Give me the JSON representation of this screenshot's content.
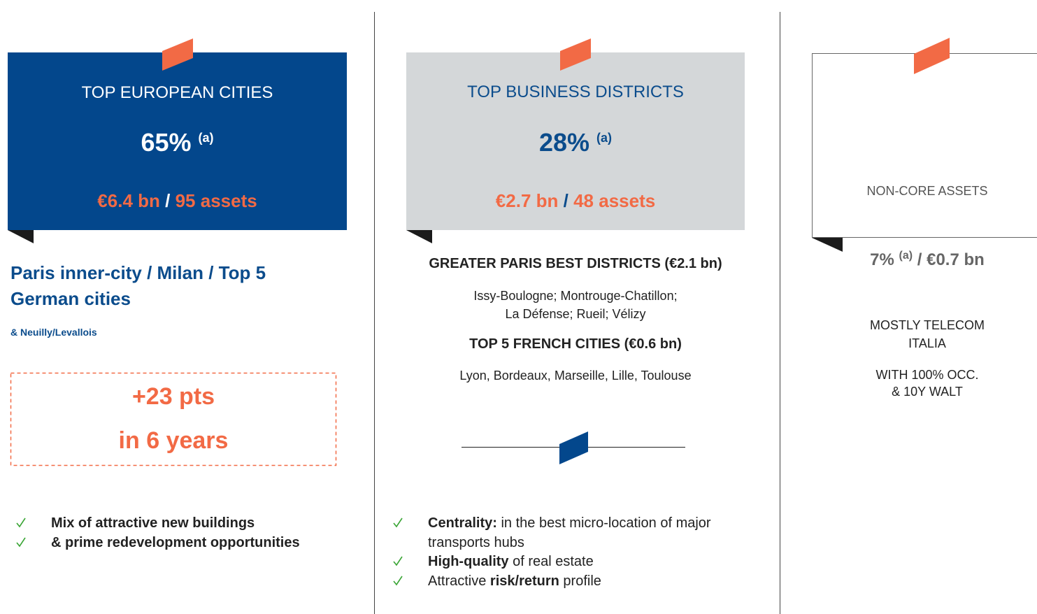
{
  "columns": [
    {
      "header": "TOP EUROPEAN CITIES",
      "share": "65%",
      "note": "(a)",
      "amount": "€6.4 bn",
      "separator": "/",
      "assets": "95 assets",
      "subtitle": "Paris inner-city / Milan / Top 5 German cities",
      "subnote": "& Neuilly/Levallois",
      "highlight": [
        "+23 pts",
        "in 6 years"
      ],
      "bullets": [
        [
          {
            "text": "Mix of attractive new buildings",
            "bold": true
          }
        ],
        [
          {
            "text": "& prime redevelopment opportunities",
            "bold": true
          }
        ]
      ]
    },
    {
      "header": "TOP BUSINESS DISTRICTS",
      "share": "28%",
      "note": "(a)",
      "amount": "€2.7 bn",
      "separator": "/",
      "assets": "48 assets",
      "sections": [
        {
          "title": "GREATER PARIS BEST DISTRICTS (€2.1 bn)",
          "lines": [
            "Issy-Boulogne; Montrouge-Chatillon;",
            "La Défense; Rueil; Vélizy"
          ]
        },
        {
          "title": "TOP 5 FRENCH CITIES (€0.6 bn)",
          "lines": [
            "Lyon, Bordeaux, Marseille, Lille, Toulouse"
          ]
        }
      ],
      "bullets": [
        [
          {
            "text": "Centrality:",
            "bold": true
          },
          {
            "text": " in the best micro-location of major transports hubs"
          }
        ],
        [
          {
            "text": "High-quality",
            "bold": true
          },
          {
            "text": " of real estate"
          }
        ],
        [
          {
            "text": "Attractive "
          },
          {
            "text": "risk/return",
            "bold": true
          },
          {
            "text": " profile"
          }
        ]
      ]
    },
    {
      "header": "NON-CORE ASSETS",
      "share": "7%",
      "note": "(a)",
      "separator": "/",
      "amount": "€0.7 bn",
      "details": [
        [
          "MOSTLY TELECOM",
          "ITALIA"
        ],
        [
          "WITH 100% OCC.",
          "& 10Y WALT"
        ]
      ]
    }
  ]
}
